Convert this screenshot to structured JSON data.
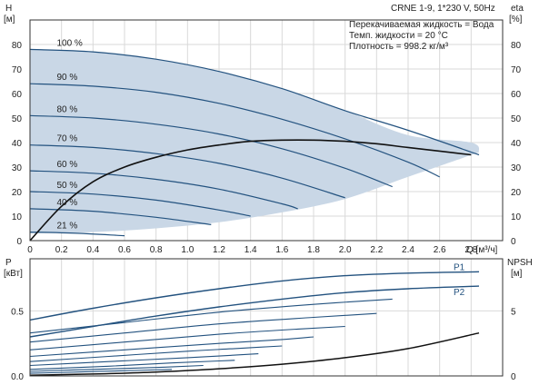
{
  "header": {
    "product": "CRNE 1-9, 1*230 V, 50Hz",
    "info_lines": [
      "Перекачиваемая жидкость = Вода",
      "Темп. жидкости = 20 °C",
      "Плотность = 998.2 кг/м³"
    ]
  },
  "colors": {
    "region_fill": "#c9d7e6",
    "curve_blue": "#23527f",
    "curve_black": "#111111",
    "grid": "#d9d9d9",
    "axis": "#333333"
  },
  "chart_data": [
    {
      "type": "line",
      "name": "head",
      "ylabel_left": "H",
      "ylabel_left_unit": "[м]",
      "ylabel_right": "eta",
      "ylabel_right_unit": "[%]",
      "xlabel": "Q [м³/ч]",
      "xlim": [
        0,
        3.0
      ],
      "ylim": [
        0,
        90
      ],
      "ylim_right": [
        0,
        90
      ],
      "x_ticks": [
        0,
        0.2,
        0.4,
        0.6,
        0.8,
        1.0,
        1.2,
        1.4,
        1.6,
        1.8,
        2.0,
        2.2,
        2.4,
        2.6,
        2.8
      ],
      "x_tick_labels": [
        "0",
        "0.2",
        "0.4",
        "0.6",
        "0.8",
        "1.0",
        "1.2",
        "1.4",
        "1.6",
        "1.8",
        "2.0",
        "2.2",
        "2.4",
        "2.6",
        "2.8"
      ],
      "y_ticks": [
        0,
        10,
        20,
        30,
        40,
        50,
        60,
        70,
        80
      ],
      "y_right_ticks": [
        0,
        10,
        20,
        30,
        40,
        50,
        60,
        70,
        80
      ],
      "grid": true,
      "operating_region": {
        "upper_x": [
          0,
          0.4,
          0.8,
          1.2,
          1.6,
          2.0,
          2.4,
          2.8,
          2.85
        ],
        "upper_y": [
          78,
          77,
          74,
          69,
          62,
          53,
          43,
          40,
          36
        ],
        "lower_x": [
          0,
          0.4,
          0.8,
          1.2,
          1.6,
          2.0,
          2.4,
          2.85
        ],
        "lower_y": [
          3,
          3.5,
          5,
          7.5,
          11.5,
          17,
          26,
          36
        ]
      },
      "speed_curves": [
        {
          "label": "100 %",
          "x": [
            0,
            0.4,
            0.8,
            1.2,
            1.6,
            2.0,
            2.4,
            2.85
          ],
          "y": [
            78,
            77,
            74,
            69,
            62,
            53,
            45,
            35
          ]
        },
        {
          "label": "90 %",
          "x": [
            0,
            0.4,
            0.8,
            1.2,
            1.6,
            2.0,
            2.4,
            2.6
          ],
          "y": [
            64,
            63,
            60.5,
            56,
            49.5,
            41.5,
            32,
            26
          ]
        },
        {
          "label": "80 %",
          "x": [
            0,
            0.4,
            0.8,
            1.2,
            1.6,
            2.0,
            2.3
          ],
          "y": [
            51,
            50,
            47.5,
            43.5,
            37.5,
            29.5,
            22
          ]
        },
        {
          "label": "70 %",
          "x": [
            0,
            0.4,
            0.8,
            1.2,
            1.6,
            2.0
          ],
          "y": [
            39,
            38,
            35.5,
            31.5,
            25.5,
            17.5
          ]
        },
        {
          "label": "60 %",
          "x": [
            0,
            0.4,
            0.8,
            1.2,
            1.6,
            1.7
          ],
          "y": [
            28.5,
            27.5,
            25,
            21,
            15,
            13
          ]
        },
        {
          "label": "50 %",
          "x": [
            0,
            0.4,
            0.8,
            1.2,
            1.4
          ],
          "y": [
            20,
            19,
            16.5,
            12.5,
            10
          ]
        },
        {
          "label": "40 %",
          "x": [
            0,
            0.4,
            0.8,
            1.15
          ],
          "y": [
            13,
            12,
            9.5,
            6.5
          ]
        },
        {
          "label": "21 %",
          "x": [
            0,
            0.3,
            0.6
          ],
          "y": [
            3.5,
            3,
            2
          ]
        }
      ],
      "efficiency_curve": {
        "x": [
          0,
          0.2,
          0.4,
          0.6,
          0.8,
          1.0,
          1.2,
          1.4,
          1.6,
          1.8,
          2.0,
          2.2,
          2.4,
          2.6,
          2.8
        ],
        "y": [
          0,
          14,
          24,
          30,
          34,
          37,
          39,
          40.5,
          41,
          41,
          40.5,
          39.5,
          38,
          36.5,
          35
        ]
      }
    },
    {
      "type": "line",
      "name": "power_npsh",
      "ylabel_left": "P",
      "ylabel_left_unit": "[кВт]",
      "ylabel_right": "NPSH",
      "ylabel_right_unit": "[м]",
      "xlim": [
        0,
        3.0
      ],
      "ylim": [
        0,
        0.9
      ],
      "ylim_right": [
        0,
        9
      ],
      "y_ticks": [
        0.0,
        0.5
      ],
      "y_tick_labels": [
        "0.0",
        "0.5"
      ],
      "y_right_ticks": [
        0,
        5
      ],
      "grid": true,
      "series": [
        {
          "name": "P1",
          "x": [
            0,
            0.4,
            0.8,
            1.2,
            1.6,
            2.0,
            2.4,
            2.85
          ],
          "y": [
            0.43,
            0.52,
            0.6,
            0.67,
            0.73,
            0.77,
            0.79,
            0.8
          ]
        },
        {
          "name": "P2",
          "x": [
            0,
            0.4,
            0.8,
            1.2,
            1.6,
            2.0,
            2.4,
            2.85
          ],
          "y": [
            0.3,
            0.38,
            0.46,
            0.53,
            0.59,
            0.64,
            0.67,
            0.69
          ]
        }
      ],
      "power_speed_curves": [
        {
          "x": [
            0,
            0.6,
            1.2,
            1.8,
            2.3
          ],
          "y": [
            0.33,
            0.41,
            0.49,
            0.55,
            0.59
          ]
        },
        {
          "x": [
            0,
            0.6,
            1.2,
            1.8,
            2.2
          ],
          "y": [
            0.26,
            0.33,
            0.4,
            0.45,
            0.48
          ]
        },
        {
          "x": [
            0,
            0.6,
            1.2,
            1.7,
            2.0
          ],
          "y": [
            0.2,
            0.26,
            0.32,
            0.36,
            0.38
          ]
        },
        {
          "x": [
            0,
            0.6,
            1.2,
            1.6,
            1.8
          ],
          "y": [
            0.15,
            0.2,
            0.25,
            0.28,
            0.3
          ]
        },
        {
          "x": [
            0,
            0.5,
            1.0,
            1.3,
            1.6
          ],
          "y": [
            0.11,
            0.15,
            0.19,
            0.21,
            0.23
          ]
        },
        {
          "x": [
            0,
            0.5,
            1.0,
            1.3,
            1.45
          ],
          "y": [
            0.08,
            0.11,
            0.14,
            0.16,
            0.17
          ]
        },
        {
          "x": [
            0,
            0.5,
            0.9,
            1.2,
            1.3
          ],
          "y": [
            0.05,
            0.075,
            0.1,
            0.115,
            0.12
          ]
        },
        {
          "x": [
            0,
            0.4,
            0.8,
            1.1
          ],
          "y": [
            0.035,
            0.05,
            0.065,
            0.08
          ]
        },
        {
          "x": [
            0,
            0.3,
            0.6,
            0.9
          ],
          "y": [
            0.02,
            0.03,
            0.04,
            0.05
          ]
        }
      ],
      "npsh_curve": {
        "x": [
          0,
          0.4,
          0.8,
          1.2,
          1.6,
          2.0,
          2.4,
          2.85
        ],
        "y": [
          0.05,
          0.15,
          0.3,
          0.55,
          0.9,
          1.4,
          2.1,
          3.3
        ]
      }
    }
  ]
}
